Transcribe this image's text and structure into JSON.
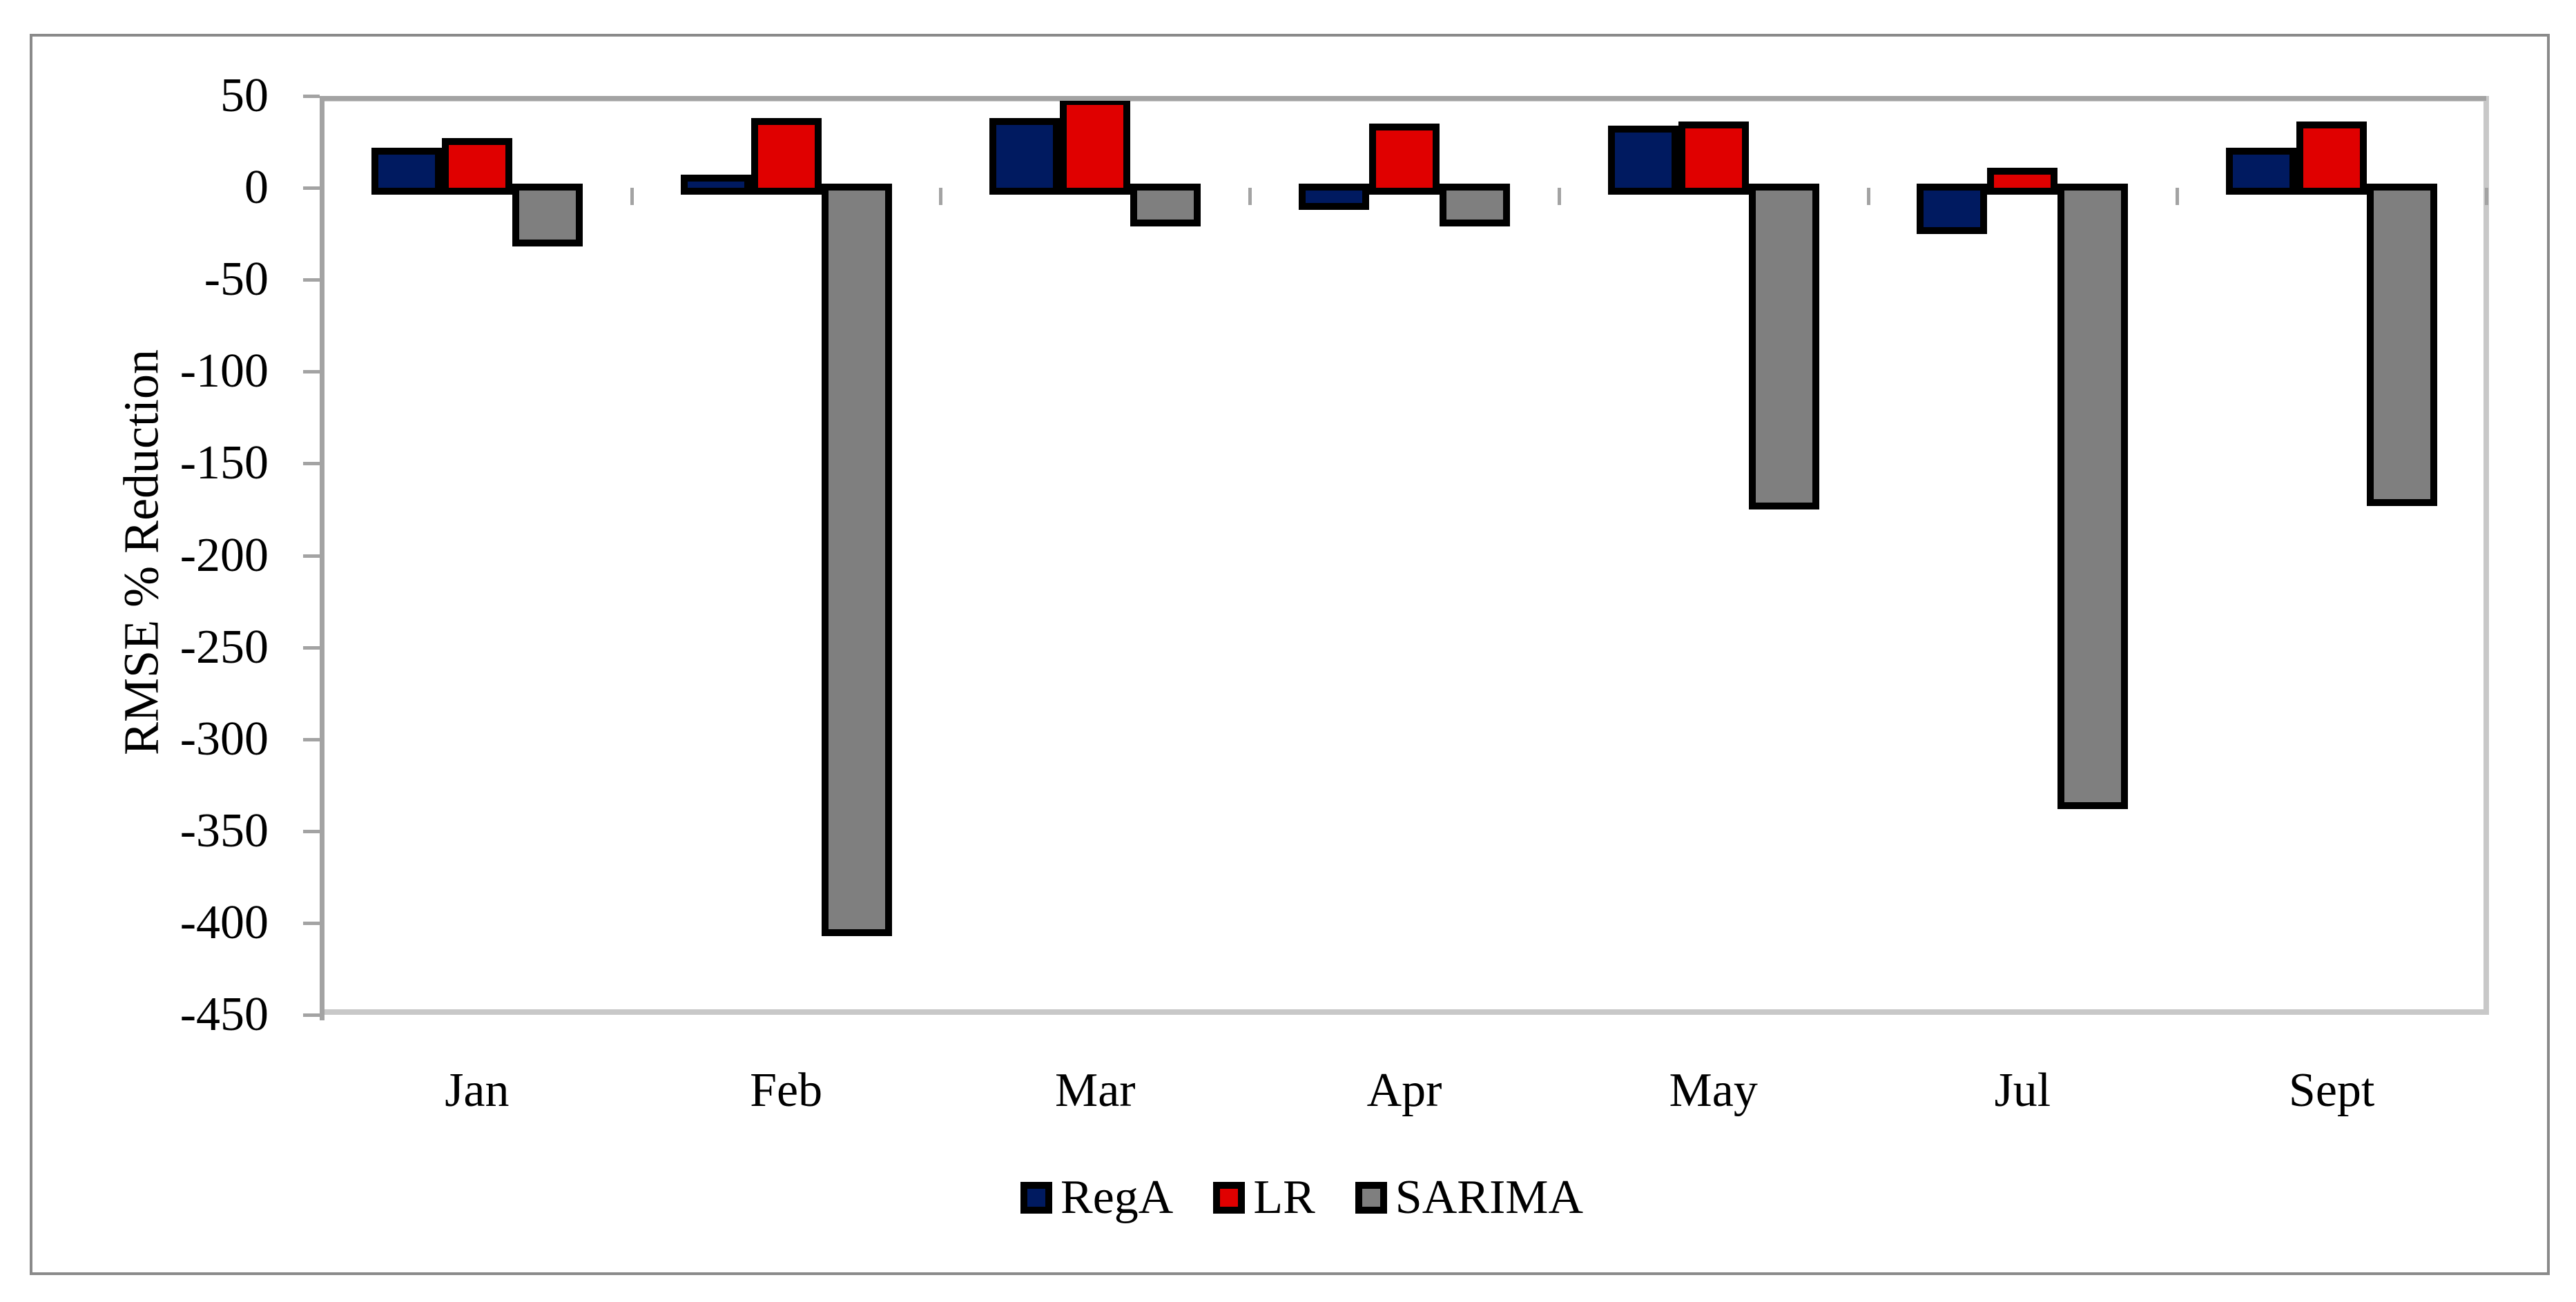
{
  "chart_data": {
    "type": "bar",
    "title": "",
    "xlabel": "",
    "ylabel": "RMSE % Reduction",
    "categories": [
      "Jan",
      "Feb",
      "Mar",
      "Apr",
      "May",
      "Jul",
      "Sept"
    ],
    "series": [
      {
        "name": "RegA",
        "color": "#001a60",
        "values": [
          22,
          7,
          38,
          -12,
          34,
          -25,
          22
        ]
      },
      {
        "name": "LR",
        "color": "#e00000",
        "values": [
          27,
          38,
          49,
          35,
          36,
          11,
          36
        ]
      },
      {
        "name": "SARIMA",
        "color": "#7f7f7f",
        "values": [
          -32,
          -407,
          -21,
          -21,
          -175,
          -338,
          -173
        ]
      }
    ],
    "ylim": [
      -450,
      50
    ],
    "yticks": [
      50,
      0,
      -50,
      -100,
      -150,
      -200,
      -250,
      -300,
      -350,
      -400,
      -450
    ],
    "grid": "horizontal line at 50 (plot top), zero axis line, plot bottom at -450",
    "legend_position": "bottom-center",
    "bar_border_color": "#000000"
  },
  "colors": {
    "background": "#ffffff",
    "figure_border": "#8a8a8a",
    "axis_line": "#a3a3a3",
    "plot_border_light": "#c8c8c8",
    "text": "#000000"
  }
}
